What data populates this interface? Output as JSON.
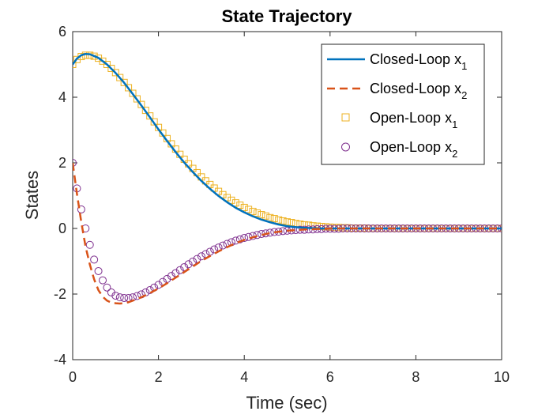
{
  "chart_data": {
    "type": "line",
    "title": "State Trajectory",
    "xlabel": "Time (sec)",
    "ylabel": "States",
    "xlim": [
      0,
      10
    ],
    "ylim": [
      -4,
      6
    ],
    "x_ticks": [
      "0",
      "2",
      "4",
      "6",
      "8",
      "10"
    ],
    "y_ticks": [
      "-4",
      "-2",
      "0",
      "2",
      "4",
      "6"
    ],
    "grid": false,
    "legend_position": "top-right",
    "legend": [
      {
        "base": "Closed-Loop x",
        "sub": "1"
      },
      {
        "base": "Closed-Loop x",
        "sub": "2"
      },
      {
        "base": "Open-Loop x",
        "sub": "1"
      },
      {
        "base": "Open-Loop x",
        "sub": "2"
      }
    ],
    "series": [
      {
        "name": "Closed-Loop x1",
        "style": "solid-line",
        "color": "#0072BD",
        "x": [
          0,
          0.1,
          0.2,
          0.3,
          0.4,
          0.6,
          0.8,
          1.0,
          1.2,
          1.4,
          1.6,
          1.8,
          2.0,
          2.2,
          2.4,
          2.6,
          2.8,
          3.0,
          3.2,
          3.4,
          3.6,
          3.8,
          4.0,
          4.2,
          4.4,
          4.6,
          4.8,
          5.0,
          5.2,
          5.4,
          5.6,
          5.8,
          6.0,
          6.5,
          7.0,
          7.5,
          8.0,
          8.5,
          9.0,
          9.5,
          10.0
        ],
        "y": [
          5.0,
          5.18,
          5.28,
          5.32,
          5.31,
          5.2,
          5.0,
          4.74,
          4.44,
          4.1,
          3.75,
          3.39,
          3.02,
          2.67,
          2.33,
          2.01,
          1.72,
          1.45,
          1.21,
          0.99,
          0.8,
          0.63,
          0.49,
          0.37,
          0.27,
          0.19,
          0.12,
          0.07,
          0.04,
          0.02,
          0.01,
          0.0,
          0.0,
          0.0,
          0.0,
          0.0,
          0.0,
          0.0,
          0.0,
          0.0,
          0.0
        ]
      },
      {
        "name": "Closed-Loop x2",
        "style": "dashed-line",
        "color": "#D95319",
        "x": [
          0,
          0.1,
          0.2,
          0.3,
          0.4,
          0.5,
          0.6,
          0.7,
          0.8,
          0.9,
          1.0,
          1.1,
          1.2,
          1.3,
          1.4,
          1.6,
          1.8,
          2.0,
          2.2,
          2.4,
          2.6,
          2.8,
          3.0,
          3.2,
          3.4,
          3.6,
          3.8,
          4.0,
          4.2,
          4.4,
          4.6,
          4.8,
          5.0,
          5.2,
          5.4,
          5.6,
          5.8,
          6.0,
          6.5,
          7.0,
          7.5,
          8.0,
          8.5,
          9.0,
          9.5,
          10.0
        ],
        "y": [
          2.0,
          1.05,
          0.2,
          -0.55,
          -1.1,
          -1.55,
          -1.88,
          -2.08,
          -2.2,
          -2.26,
          -2.28,
          -2.29,
          -2.28,
          -2.25,
          -2.2,
          -2.1,
          -1.97,
          -1.83,
          -1.67,
          -1.5,
          -1.33,
          -1.16,
          -0.99,
          -0.84,
          -0.7,
          -0.57,
          -0.45,
          -0.35,
          -0.27,
          -0.2,
          -0.14,
          -0.1,
          -0.07,
          -0.05,
          -0.03,
          -0.02,
          -0.01,
          0.0,
          0.0,
          0.0,
          0.0,
          0.0,
          0.0,
          0.0,
          0.0,
          0.0
        ]
      },
      {
        "name": "Open-Loop x1",
        "style": "square-markers",
        "color": "#EDB120",
        "x": [
          0,
          0.1,
          0.2,
          0.3,
          0.4,
          0.5,
          0.6,
          0.7,
          0.8,
          0.9,
          1.0,
          1.1,
          1.2,
          1.3,
          1.4,
          1.5,
          1.6,
          1.7,
          1.8,
          1.9,
          2.0,
          2.1,
          2.2,
          2.3,
          2.4,
          2.5,
          2.6,
          2.7,
          2.8,
          2.9,
          3.0,
          3.1,
          3.2,
          3.3,
          3.4,
          3.5,
          3.6,
          3.7,
          3.8,
          3.9,
          4.0,
          4.1,
          4.2,
          4.3,
          4.4,
          4.5,
          4.6,
          4.7,
          4.8,
          4.9,
          5.0,
          5.1,
          5.2,
          5.3,
          5.4,
          5.5,
          5.6,
          5.7,
          5.8,
          5.9,
          6.0,
          6.1,
          6.2,
          6.3,
          6.4,
          6.5,
          6.6,
          6.7,
          6.8,
          6.9,
          7.0,
          7.1,
          7.2,
          7.3,
          7.4,
          7.5,
          7.6,
          7.7,
          7.8,
          7.9,
          8.0,
          8.1,
          8.2,
          8.3,
          8.4,
          8.5,
          8.6,
          8.7,
          8.8,
          8.9,
          9.0,
          9.1,
          9.2,
          9.3,
          9.4,
          9.5,
          9.6,
          9.7,
          9.8,
          9.9,
          10.0
        ],
        "y": [
          5.0,
          5.15,
          5.24,
          5.28,
          5.28,
          5.25,
          5.19,
          5.1,
          5.0,
          4.88,
          4.75,
          4.6,
          4.45,
          4.29,
          4.12,
          3.95,
          3.78,
          3.6,
          3.43,
          3.25,
          3.08,
          2.91,
          2.74,
          2.58,
          2.42,
          2.26,
          2.11,
          1.97,
          1.83,
          1.7,
          1.57,
          1.45,
          1.34,
          1.23,
          1.13,
          1.03,
          0.94,
          0.86,
          0.78,
          0.71,
          0.64,
          0.58,
          0.52,
          0.47,
          0.42,
          0.38,
          0.33,
          0.3,
          0.26,
          0.23,
          0.2,
          0.18,
          0.15,
          0.13,
          0.11,
          0.1,
          0.08,
          0.07,
          0.06,
          0.05,
          0.04,
          0.03,
          0.03,
          0.02,
          0.02,
          0.01,
          0.01,
          0.01,
          0.01,
          0.0,
          0.0,
          0.0,
          0.0,
          0.0,
          0.0,
          0.0,
          0.0,
          0.0,
          0.0,
          0.0,
          0.0,
          0.0,
          0.0,
          0.0,
          0.0,
          0.0,
          0.0,
          0.0,
          0.0,
          0.0,
          0.0,
          0.0,
          0.0,
          0.0,
          0.0,
          0.0,
          0.0,
          0.0,
          0.0,
          0.0,
          0.0
        ]
      },
      {
        "name": "Open-Loop x2",
        "style": "circle-markers",
        "color": "#7E2F8E",
        "x": [
          0,
          0.1,
          0.2,
          0.3,
          0.4,
          0.5,
          0.6,
          0.7,
          0.8,
          0.9,
          1.0,
          1.1,
          1.2,
          1.3,
          1.4,
          1.5,
          1.6,
          1.7,
          1.8,
          1.9,
          2.0,
          2.1,
          2.2,
          2.3,
          2.4,
          2.5,
          2.6,
          2.7,
          2.8,
          2.9,
          3.0,
          3.1,
          3.2,
          3.3,
          3.4,
          3.5,
          3.6,
          3.7,
          3.8,
          3.9,
          4.0,
          4.1,
          4.2,
          4.3,
          4.4,
          4.5,
          4.6,
          4.7,
          4.8,
          4.9,
          5.0,
          5.1,
          5.2,
          5.3,
          5.4,
          5.5,
          5.6,
          5.7,
          5.8,
          5.9,
          6.0,
          6.1,
          6.2,
          6.3,
          6.4,
          6.5,
          6.6,
          6.7,
          6.8,
          6.9,
          7.0,
          7.1,
          7.2,
          7.3,
          7.4,
          7.5,
          7.6,
          7.7,
          7.8,
          7.9,
          8.0,
          8.1,
          8.2,
          8.3,
          8.4,
          8.5,
          8.6,
          8.7,
          8.8,
          8.9,
          9.0,
          9.1,
          9.2,
          9.3,
          9.4,
          9.5,
          9.6,
          9.7,
          9.8,
          9.9,
          10.0
        ],
        "y": [
          2.0,
          1.22,
          0.58,
          0.0,
          -0.5,
          -0.95,
          -1.3,
          -1.58,
          -1.8,
          -1.95,
          -2.05,
          -2.1,
          -2.12,
          -2.12,
          -2.1,
          -2.06,
          -2.01,
          -1.95,
          -1.88,
          -1.8,
          -1.72,
          -1.63,
          -1.54,
          -1.45,
          -1.36,
          -1.27,
          -1.18,
          -1.09,
          -1.01,
          -0.93,
          -0.85,
          -0.78,
          -0.71,
          -0.64,
          -0.58,
          -0.52,
          -0.47,
          -0.42,
          -0.37,
          -0.33,
          -0.29,
          -0.26,
          -0.23,
          -0.2,
          -0.17,
          -0.15,
          -0.13,
          -0.11,
          -0.1,
          -0.08,
          -0.07,
          -0.06,
          -0.05,
          -0.04,
          -0.04,
          -0.03,
          -0.03,
          -0.02,
          -0.02,
          -0.01,
          -0.01,
          -0.01,
          -0.01,
          0.0,
          0.0,
          0.0,
          0.0,
          0.0,
          0.0,
          0.0,
          0.0,
          0.0,
          0.0,
          0.0,
          0.0,
          0.0,
          0.0,
          0.0,
          0.0,
          0.0,
          0.0,
          0.0,
          0.0,
          0.0,
          0.0,
          0.0,
          0.0,
          0.0,
          0.0,
          0.0,
          0.0,
          0.0,
          0.0,
          0.0,
          0.0,
          0.0,
          0.0,
          0.0,
          0.0,
          0.0,
          0.0
        ]
      }
    ]
  }
}
